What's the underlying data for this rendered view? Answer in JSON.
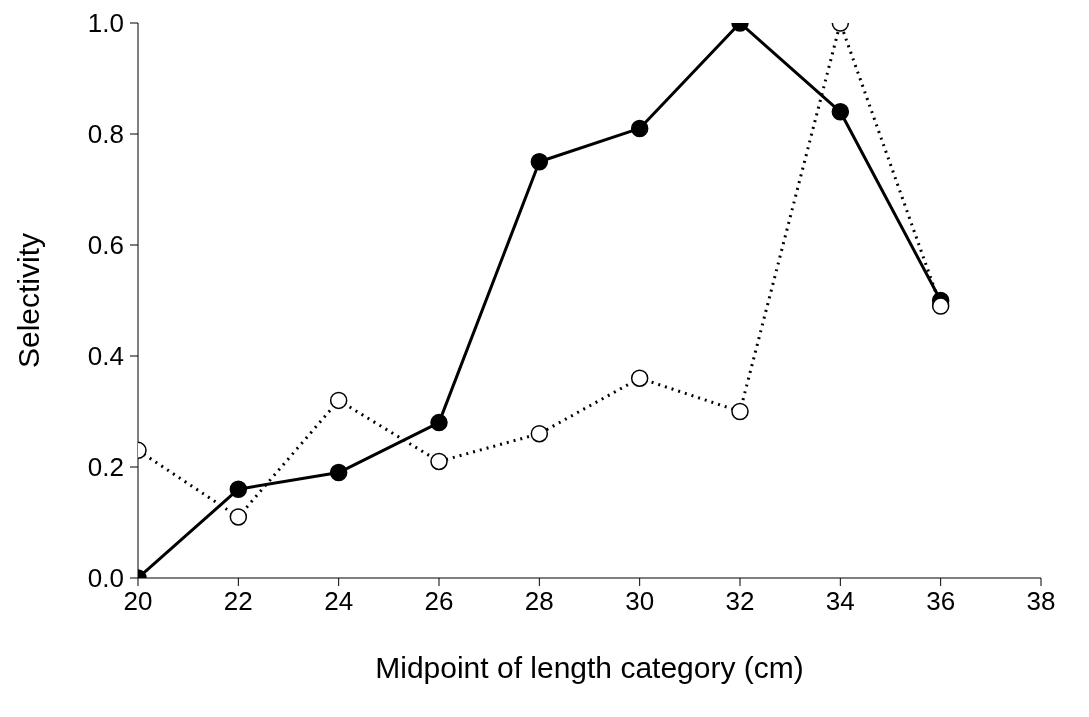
{
  "chart_data": {
    "type": "line",
    "xlabel": "Midpoint of length category (cm)",
    "ylabel": "Selectivity",
    "x": [
      20,
      22,
      24,
      26,
      28,
      30,
      32,
      34,
      36
    ],
    "series": [
      {
        "color": "#000000",
        "line_style": "solid",
        "values": [
          0,
          0.16,
          0.19,
          0.28,
          0.75,
          0.81,
          1.0,
          0.84,
          0.5
        ]
      },
      {
        "color": "#000000",
        "line_style": "dotted",
        "values": [
          0.23,
          0.11,
          0.32,
          0.21,
          0.26,
          0.36,
          0.3,
          1.0,
          0.49
        ]
      }
    ],
    "xlim": [
      20,
      38
    ],
    "xticks": [
      20,
      22,
      24,
      26,
      28,
      30,
      32,
      34,
      36,
      38
    ],
    "ylim": [
      0,
      1
    ],
    "yticks": [
      {
        "value": 0,
        "label": "0.0"
      },
      {
        "value": 0.2,
        "label": "0.2"
      },
      {
        "value": 0.4,
        "label": "0.4"
      },
      {
        "value": 0.6,
        "label": "0.6"
      },
      {
        "value": 0.8,
        "label": "0.8"
      },
      {
        "value": 1,
        "label": "1.0"
      }
    ],
    "grid": false,
    "legend": false,
    "marker": "circle"
  }
}
